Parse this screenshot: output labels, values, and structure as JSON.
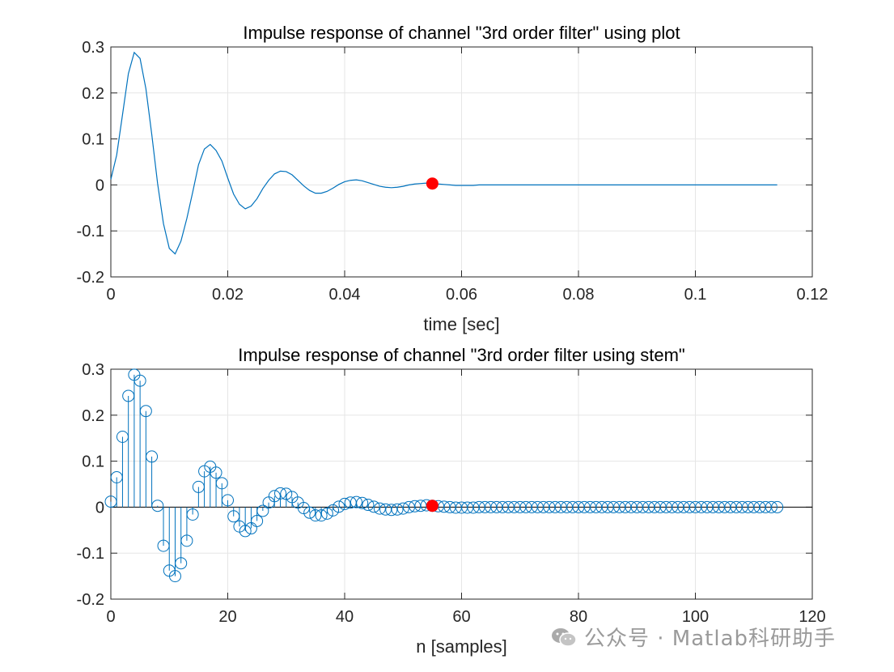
{
  "chart_data": [
    {
      "type": "line",
      "title": "Impulse response of channel \"3rd order filter\" using plot",
      "xlabel": "time [sec]",
      "ylabel": "",
      "xlim": [
        0,
        0.12
      ],
      "ylim": [
        -0.2,
        0.3
      ],
      "xticks": [
        0,
        0.02,
        0.04,
        0.06,
        0.08,
        0.1,
        0.12
      ],
      "xtick_labels": [
        "0",
        "0.02",
        "0.04",
        "0.06",
        "0.08",
        "0.1",
        "0.12"
      ],
      "yticks": [
        -0.2,
        -0.1,
        0,
        0.1,
        0.2,
        0.3
      ],
      "ytick_labels": [
        "-0.2",
        "-0.1",
        "0",
        "0.1",
        "0.2",
        "0.3"
      ],
      "grid": true,
      "series_color": "#0072BD",
      "marker_color": "#FF0000",
      "x": [
        0,
        0.001,
        0.002,
        0.003,
        0.004,
        0.005,
        0.006,
        0.007,
        0.008,
        0.009,
        0.01,
        0.011,
        0.012,
        0.013,
        0.014,
        0.015,
        0.016,
        0.017,
        0.018,
        0.019,
        0.02,
        0.021,
        0.022,
        0.023,
        0.024,
        0.025,
        0.026,
        0.027,
        0.028,
        0.029,
        0.03,
        0.031,
        0.032,
        0.033,
        0.034,
        0.035,
        0.036,
        0.037,
        0.038,
        0.039,
        0.04,
        0.041,
        0.042,
        0.043,
        0.044,
        0.045,
        0.046,
        0.047,
        0.048,
        0.049,
        0.05,
        0.051,
        0.052,
        0.053,
        0.054,
        0.055,
        0.056,
        0.057,
        0.058,
        0.059,
        0.06,
        0.061,
        0.062,
        0.063,
        0.064,
        0.065,
        0.066,
        0.067,
        0.068,
        0.069,
        0.07,
        0.071,
        0.072,
        0.073,
        0.074,
        0.075,
        0.076,
        0.077,
        0.078,
        0.079,
        0.08,
        0.081,
        0.082,
        0.083,
        0.084,
        0.085,
        0.086,
        0.087,
        0.088,
        0.089,
        0.09,
        0.091,
        0.092,
        0.093,
        0.094,
        0.095,
        0.096,
        0.097,
        0.098,
        0.099,
        0.1,
        0.101,
        0.102,
        0.103,
        0.104,
        0.105,
        0.106,
        0.107,
        0.108,
        0.109,
        0.11,
        0.111,
        0.112,
        0.113,
        0.114
      ],
      "y": [
        0.012,
        0.065,
        0.153,
        0.242,
        0.288,
        0.275,
        0.209,
        0.11,
        0.003,
        -0.084,
        -0.138,
        -0.15,
        -0.122,
        -0.073,
        -0.016,
        0.044,
        0.078,
        0.088,
        0.075,
        0.052,
        0.015,
        -0.02,
        -0.042,
        -0.052,
        -0.046,
        -0.03,
        -0.008,
        0.01,
        0.024,
        0.03,
        0.029,
        0.022,
        0.01,
        -0.002,
        -0.012,
        -0.018,
        -0.018,
        -0.014,
        -0.007,
        0.001,
        0.007,
        0.01,
        0.011,
        0.009,
        0.005,
        0.001,
        -0.003,
        -0.005,
        -0.006,
        -0.005,
        -0.003,
        0.0,
        0.002,
        0.003,
        0.004,
        0.003,
        0.002,
        0.001,
        0.0,
        -0.001,
        -0.001,
        -0.001,
        -0.001,
        0.0,
        0.0,
        0.0,
        0.0,
        0.0,
        0.0,
        0.0,
        0.0,
        0.0,
        0.0,
        0.0,
        0.0,
        0.0,
        0.0,
        0.0,
        0.0,
        0.0,
        0.0,
        0.0,
        0.0,
        0.0,
        0.0,
        0.0,
        0.0,
        0.0,
        0.0,
        0.0,
        0.0,
        0.0,
        0.0,
        0.0,
        0.0,
        0.0,
        0.0,
        0.0,
        0.0,
        0.0,
        0.0,
        0.0,
        0.0,
        0.0,
        0.0,
        0.0,
        0.0,
        0.0,
        0.0,
        0.0,
        0.0,
        0.0,
        0.0,
        0.0,
        0.0
      ],
      "highlight": {
        "x": 0.055,
        "y": 0.003
      }
    },
    {
      "type": "stem",
      "title": "Impulse response of channel \"3rd order filter using stem\"",
      "xlabel": "n [samples]",
      "ylabel": "",
      "xlim": [
        0,
        120
      ],
      "ylim": [
        -0.2,
        0.3
      ],
      "xticks": [
        0,
        20,
        40,
        60,
        80,
        100,
        120
      ],
      "xtick_labels": [
        "0",
        "20",
        "40",
        "60",
        "80",
        "100",
        "120"
      ],
      "yticks": [
        -0.2,
        -0.1,
        0,
        0.1,
        0.2,
        0.3
      ],
      "ytick_labels": [
        "-0.2",
        "-0.1",
        "0",
        "0.1",
        "0.2",
        "0.3"
      ],
      "grid": true,
      "series_color": "#0072BD",
      "marker_color": "#FF0000",
      "x_from": 0,
      "x_to": 114,
      "uses_same_values_as_first": true,
      "highlight": {
        "x": 55,
        "y": 0.003
      }
    }
  ],
  "watermark": {
    "text": "公众号 · Matlab科研助手",
    "icon": "wechat-icon"
  }
}
